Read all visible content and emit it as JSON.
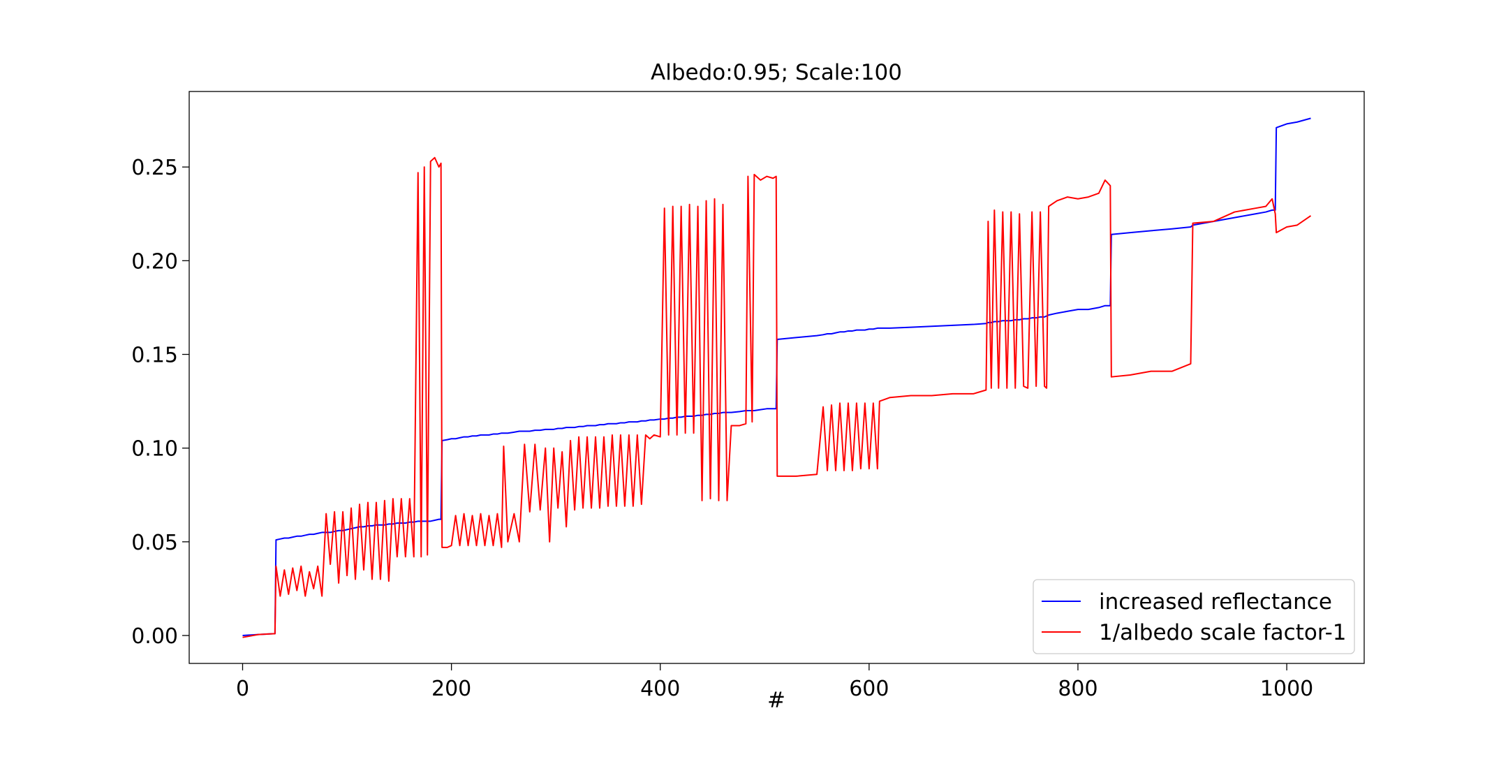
{
  "chart_data": {
    "type": "line",
    "title": "Albedo:0.95; Scale:100",
    "x_label": "#",
    "xlim": [
      -51.15,
      1074.15
    ],
    "ylim": [
      -0.0149,
      0.2903
    ],
    "xticks": [
      0,
      200,
      400,
      600,
      800,
      1000
    ],
    "yticks": [
      {
        "value": 0,
        "label": "0.00"
      },
      0.05,
      {
        "value": 0.1,
        "label": "0.10"
      },
      0.15,
      {
        "value": 0.2,
        "label": "0.20"
      },
      0.25
    ],
    "grid": false,
    "legend": "lower right",
    "x": [
      0,
      15,
      31,
      32,
      36,
      40,
      44,
      48,
      52,
      56,
      60,
      64,
      68,
      72,
      76,
      80,
      84,
      88,
      92,
      96,
      100,
      104,
      108,
      112,
      116,
      120,
      124,
      128,
      132,
      136,
      140,
      144,
      148,
      152,
      156,
      160,
      164,
      168,
      171,
      174,
      177,
      180,
      184,
      188,
      190,
      191,
      196,
      200,
      204,
      208,
      212,
      216,
      220,
      224,
      228,
      232,
      236,
      240,
      244,
      248,
      250,
      254,
      260,
      265,
      270,
      275,
      280,
      285,
      290,
      294,
      298,
      302,
      306,
      310,
      314,
      318,
      322,
      326,
      330,
      334,
      338,
      342,
      346,
      350,
      354,
      358,
      362,
      366,
      370,
      374,
      378,
      382,
      386,
      390,
      394,
      400,
      404,
      408,
      412,
      416,
      420,
      424,
      428,
      432,
      436,
      440,
      444,
      448,
      452,
      456,
      460,
      464,
      468,
      476,
      482,
      484,
      488,
      490,
      496,
      502,
      508,
      511,
      512,
      530,
      550,
      556,
      560,
      564,
      568,
      572,
      576,
      580,
      584,
      588,
      592,
      596,
      600,
      604,
      608,
      610,
      620,
      640,
      660,
      680,
      700,
      712,
      714,
      717,
      720,
      724,
      728,
      732,
      736,
      740,
      744,
      748,
      752,
      756,
      760,
      764,
      768,
      770,
      772,
      780,
      790,
      800,
      810,
      820,
      826,
      831,
      832,
      850,
      870,
      890,
      908,
      910,
      930,
      950,
      970,
      980,
      986,
      989,
      990,
      1000,
      1010,
      1023
    ],
    "series": [
      {
        "name": "increased reflectance",
        "color": "#0000ff",
        "values": [
          0,
          0.0005,
          0.001,
          0.051,
          0.0515,
          0.052,
          0.052,
          0.0525,
          0.053,
          0.053,
          0.0535,
          0.054,
          0.054,
          0.0545,
          0.055,
          0.055,
          0.055,
          0.0555,
          0.056,
          0.056,
          0.0565,
          0.057,
          0.0575,
          0.058,
          0.058,
          0.0585,
          0.0585,
          0.059,
          0.059,
          0.059,
          0.0595,
          0.0595,
          0.06,
          0.06,
          0.06,
          0.0605,
          0.0605,
          0.061,
          0.061,
          0.061,
          0.061,
          0.061,
          0.0615,
          0.062,
          0.062,
          0.104,
          0.1045,
          0.105,
          0.105,
          0.1055,
          0.106,
          0.106,
          0.1065,
          0.1065,
          0.107,
          0.107,
          0.107,
          0.1075,
          0.1075,
          0.108,
          0.108,
          0.108,
          0.1085,
          0.109,
          0.109,
          0.109,
          0.1095,
          0.1095,
          0.11,
          0.11,
          0.11,
          0.1105,
          0.1105,
          0.111,
          0.111,
          0.111,
          0.1115,
          0.1115,
          0.112,
          0.112,
          0.112,
          0.1125,
          0.1125,
          0.113,
          0.113,
          0.113,
          0.1135,
          0.1135,
          0.114,
          0.114,
          0.114,
          0.1145,
          0.1145,
          0.115,
          0.115,
          0.1155,
          0.1155,
          0.116,
          0.116,
          0.1165,
          0.1165,
          0.117,
          0.117,
          0.117,
          0.1175,
          0.1175,
          0.118,
          0.118,
          0.1185,
          0.1185,
          0.119,
          0.119,
          0.119,
          0.1195,
          0.12,
          0.12,
          0.12,
          0.12,
          0.1205,
          0.121,
          0.121,
          0.121,
          0.158,
          0.159,
          0.16,
          0.1605,
          0.161,
          0.161,
          0.1615,
          0.162,
          0.162,
          0.1625,
          0.1625,
          0.163,
          0.163,
          0.163,
          0.1635,
          0.1635,
          0.164,
          0.164,
          0.164,
          0.1645,
          0.165,
          0.1655,
          0.166,
          0.1665,
          0.167,
          0.167,
          0.1675,
          0.1675,
          0.168,
          0.168,
          0.168,
          0.1685,
          0.1685,
          0.169,
          0.169,
          0.1695,
          0.1695,
          0.17,
          0.17,
          0.1705,
          0.171,
          0.172,
          0.173,
          0.174,
          0.174,
          0.175,
          0.176,
          0.176,
          0.214,
          0.215,
          0.216,
          0.217,
          0.218,
          0.219,
          0.221,
          0.223,
          0.225,
          0.226,
          0.227,
          0.227,
          0.271,
          0.273,
          0.274,
          0.276
        ]
      },
      {
        "name": "1/albedo scale factor-1",
        "color": "#ff0000",
        "values": [
          -0.001,
          0.0005,
          0.001,
          0.037,
          0.021,
          0.035,
          0.022,
          0.036,
          0.024,
          0.037,
          0.021,
          0.034,
          0.025,
          0.037,
          0.021,
          0.065,
          0.038,
          0.066,
          0.028,
          0.066,
          0.032,
          0.068,
          0.03,
          0.07,
          0.035,
          0.071,
          0.03,
          0.071,
          0.03,
          0.072,
          0.029,
          0.073,
          0.042,
          0.073,
          0.042,
          0.073,
          0.042,
          0.247,
          0.042,
          0.25,
          0.043,
          0.253,
          0.255,
          0.25,
          0.252,
          0.047,
          0.047,
          0.048,
          0.064,
          0.048,
          0.065,
          0.048,
          0.064,
          0.048,
          0.065,
          0.048,
          0.064,
          0.048,
          0.065,
          0.047,
          0.101,
          0.05,
          0.065,
          0.05,
          0.102,
          0.066,
          0.102,
          0.067,
          0.1,
          0.05,
          0.1,
          0.068,
          0.098,
          0.058,
          0.104,
          0.067,
          0.106,
          0.068,
          0.106,
          0.068,
          0.106,
          0.068,
          0.106,
          0.069,
          0.107,
          0.069,
          0.107,
          0.069,
          0.107,
          0.069,
          0.107,
          0.07,
          0.107,
          0.105,
          0.107,
          0.106,
          0.228,
          0.107,
          0.229,
          0.107,
          0.229,
          0.108,
          0.23,
          0.108,
          0.229,
          0.072,
          0.232,
          0.073,
          0.233,
          0.072,
          0.23,
          0.072,
          0.112,
          0.112,
          0.113,
          0.245,
          0.114,
          0.246,
          0.243,
          0.245,
          0.244,
          0.245,
          0.085,
          0.085,
          0.086,
          0.122,
          0.088,
          0.123,
          0.088,
          0.124,
          0.088,
          0.124,
          0.088,
          0.124,
          0.089,
          0.124,
          0.089,
          0.124,
          0.089,
          0.125,
          0.127,
          0.128,
          0.128,
          0.129,
          0.129,
          0.131,
          0.221,
          0.132,
          0.227,
          0.132,
          0.226,
          0.132,
          0.226,
          0.132,
          0.225,
          0.133,
          0.132,
          0.226,
          0.133,
          0.226,
          0.133,
          0.132,
          0.229,
          0.232,
          0.234,
          0.233,
          0.234,
          0.236,
          0.243,
          0.24,
          0.138,
          0.139,
          0.141,
          0.141,
          0.145,
          0.22,
          0.221,
          0.226,
          0.228,
          0.229,
          0.233,
          0.225,
          0.215,
          0.218,
          0.219,
          0.224
        ]
      }
    ]
  }
}
